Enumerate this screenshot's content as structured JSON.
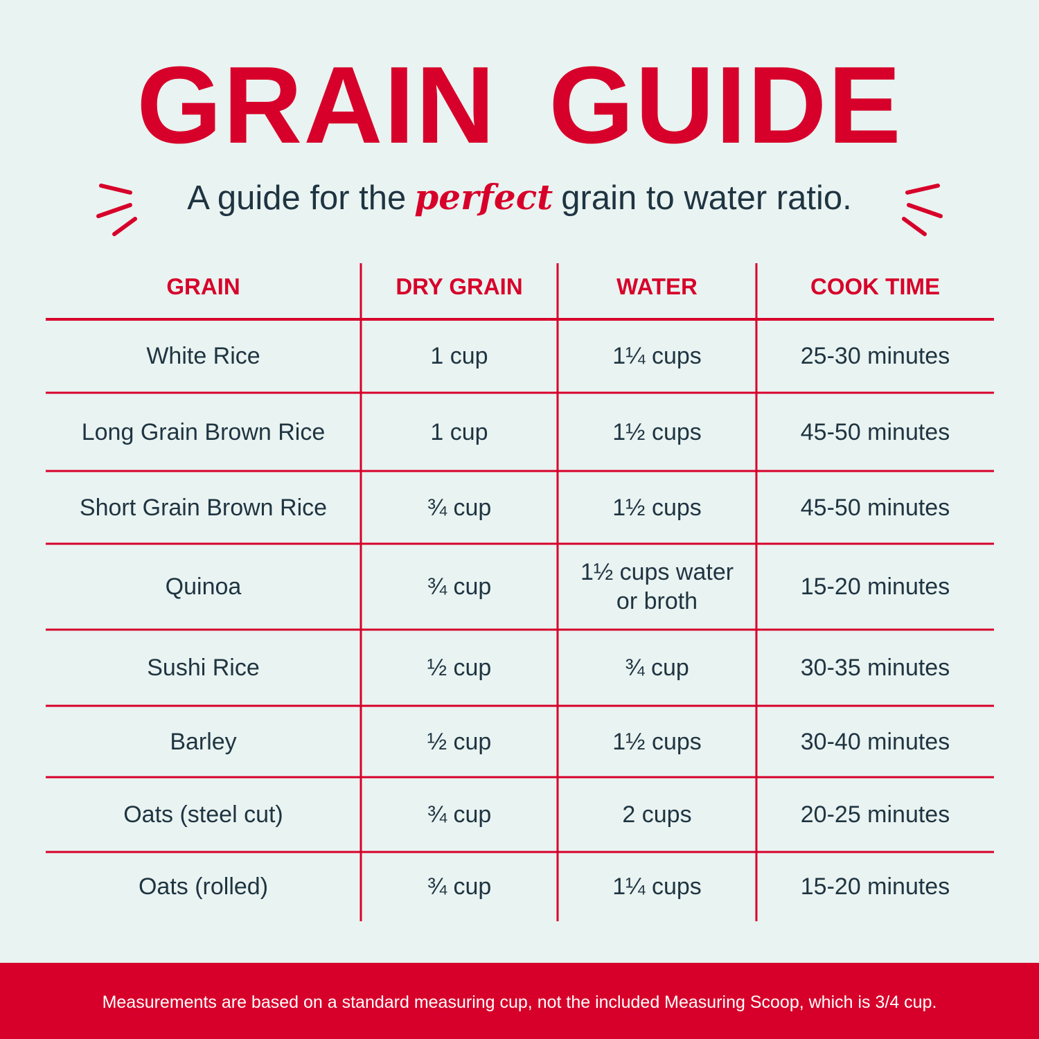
{
  "header": {
    "title": "GRAIN GUIDE",
    "subtitle": {
      "before": "A guide for the",
      "emphasis": "perfect",
      "after": "grain to water ratio."
    }
  },
  "table": {
    "columns": [
      "GRAIN",
      "DRY GRAIN",
      "WATER",
      "COOK TIME"
    ],
    "rows": [
      [
        "White Rice",
        "1 cup",
        "1¼ cups",
        "25-30 minutes"
      ],
      [
        "Long Grain Brown Rice",
        "1 cup",
        "1½ cups",
        "45-50 minutes"
      ],
      [
        "Short Grain Brown Rice",
        "¾ cup",
        "1½ cups",
        "45-50 minutes"
      ],
      [
        "Quinoa",
        "¾ cup",
        "1½ cups water or broth",
        "15-20 minutes"
      ],
      [
        "Sushi Rice",
        "½ cup",
        "¾ cup",
        "30-35 minutes"
      ],
      [
        "Barley",
        "½ cup",
        "1½ cups",
        "30-40 minutes"
      ],
      [
        "Oats (steel cut)",
        "¾ cup",
        "2 cups",
        "20-25 minutes"
      ],
      [
        "Oats (rolled)",
        "¾ cup",
        "1¼ cups",
        "15-20 minutes"
      ]
    ]
  },
  "footer": {
    "note": "Measurements are based on a standard measuring cup, not the included Measuring Scoop, which is 3/4 cup."
  }
}
